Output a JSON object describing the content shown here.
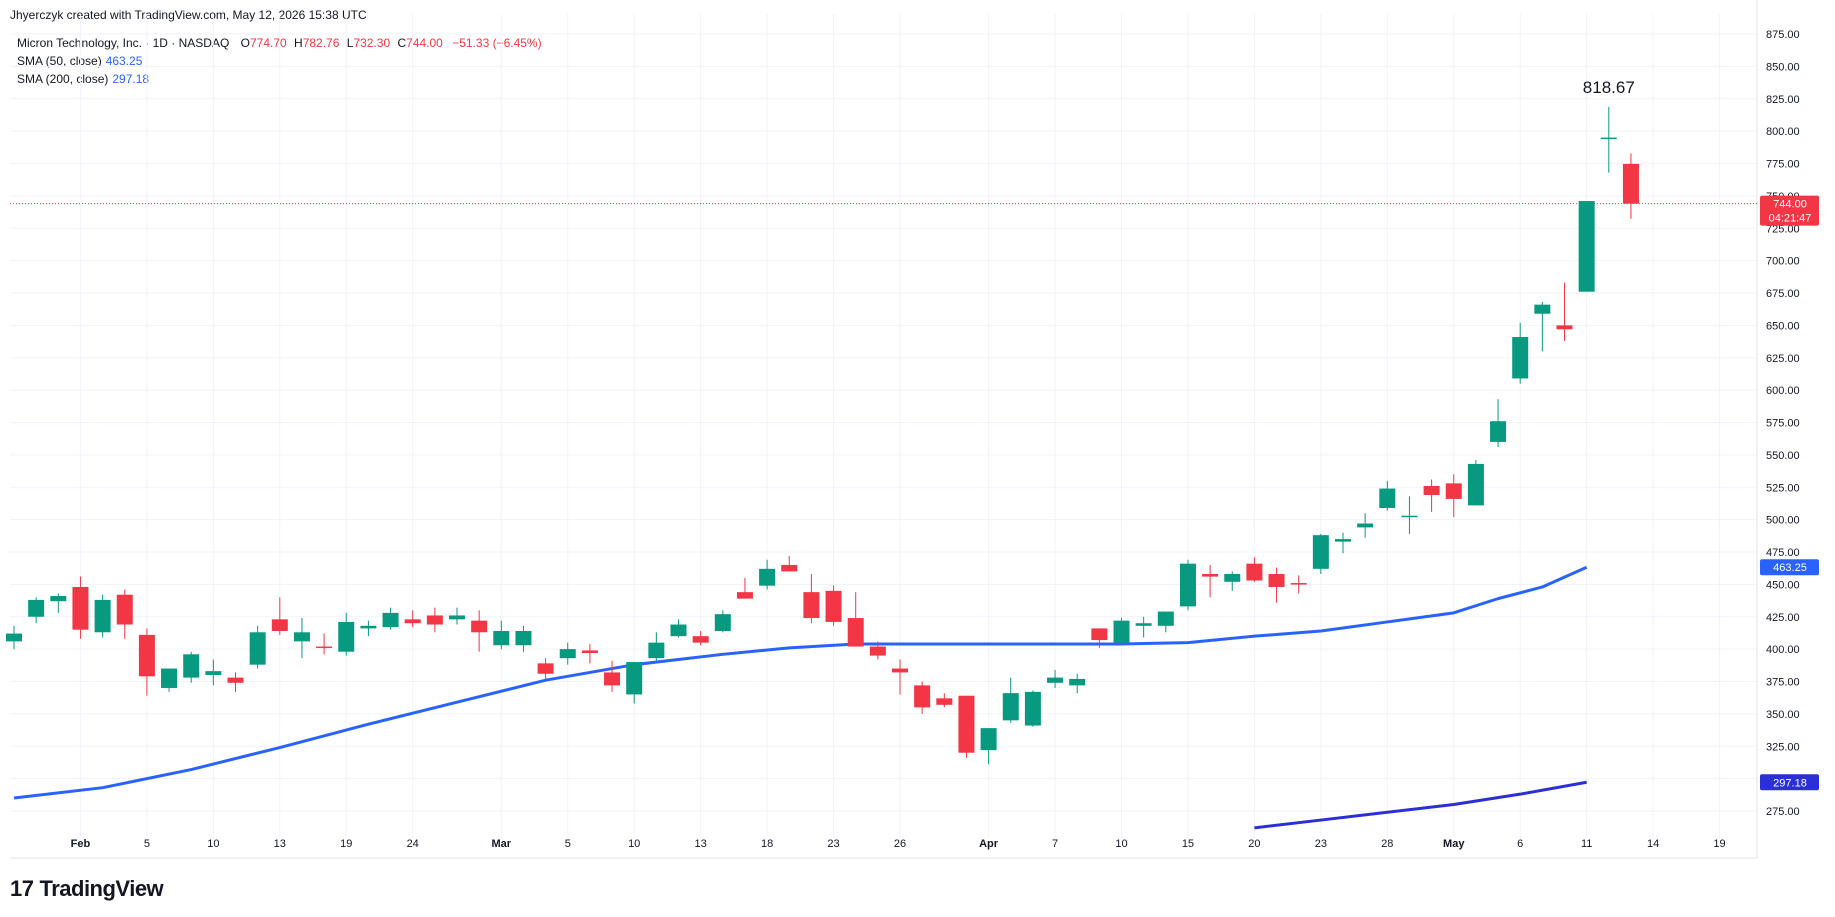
{
  "header": {
    "attribution": "Jhyerczyk created with TradingView.com, May 12, 2026 15:38 UTC"
  },
  "legend": {
    "symbol": "Micron Technology, Inc. · 1D · NASDAQ",
    "o_label": "O",
    "o_value": "774.70",
    "h_label": "H",
    "h_value": "782.76",
    "l_label": "L",
    "l_value": "732.30",
    "c_label": "C",
    "c_value": "744.00",
    "change": "−51.33 (−6.45%)",
    "sma50_label": "SMA (50, close)",
    "sma50_value": "463.25",
    "sma200_label": "SMA (200, close)",
    "sma200_value": "297.18"
  },
  "brand": {
    "logo": "17",
    "name": "TradingView"
  },
  "colors": {
    "up": "#089981",
    "down": "#f23645",
    "sma": "#2962ff",
    "sma200": "#2b2fd6",
    "grid": "#f0f3fa"
  },
  "chart_data": {
    "type": "candlestick",
    "y_range": [
      260,
      880
    ],
    "y_ticks": [
      275,
      300,
      325,
      350,
      375,
      400,
      425,
      450,
      475,
      500,
      525,
      550,
      575,
      600,
      625,
      650,
      675,
      700,
      725,
      750,
      775,
      800,
      825,
      850,
      875
    ],
    "y_tick_labels": [
      "275.00",
      "300.00",
      "325.00",
      "350.00",
      "375.00",
      "400.00",
      "425.00",
      "450.00",
      "475.00",
      "500.00",
      "525.00",
      "550.00",
      "575.00",
      "600.00",
      "625.00",
      "650.00",
      "675.00",
      "700.00",
      "725.00",
      "750.00",
      "775.00",
      "800.00",
      "825.00",
      "850.00",
      "875.00"
    ],
    "x_labels": [
      {
        "label": "Feb",
        "day": 3,
        "bold": true
      },
      {
        "label": "5",
        "day": 6
      },
      {
        "label": "10",
        "day": 9
      },
      {
        "label": "13",
        "day": 12
      },
      {
        "label": "19",
        "day": 15
      },
      {
        "label": "24",
        "day": 18
      },
      {
        "label": "Mar",
        "day": 22,
        "bold": true
      },
      {
        "label": "5",
        "day": 25
      },
      {
        "label": "10",
        "day": 28
      },
      {
        "label": "13",
        "day": 31
      },
      {
        "label": "18",
        "day": 34
      },
      {
        "label": "23",
        "day": 37
      },
      {
        "label": "26",
        "day": 40
      },
      {
        "label": "Apr",
        "day": 44,
        "bold": true
      },
      {
        "label": "7",
        "day": 47
      },
      {
        "label": "10",
        "day": 50
      },
      {
        "label": "15",
        "day": 53
      },
      {
        "label": "20",
        "day": 56
      },
      {
        "label": "23",
        "day": 59
      },
      {
        "label": "28",
        "day": 62
      },
      {
        "label": "May",
        "day": 65,
        "bold": true
      },
      {
        "label": "6",
        "day": 68
      },
      {
        "label": "11",
        "day": 71
      },
      {
        "label": "14",
        "day": 74
      },
      {
        "label": "19",
        "day": 77
      }
    ],
    "candles": [
      {
        "o": 406,
        "h": 418,
        "l": 400,
        "c": 412
      },
      {
        "o": 425,
        "h": 440,
        "l": 420,
        "c": 438
      },
      {
        "o": 437,
        "h": 443,
        "l": 428,
        "c": 441
      },
      {
        "o": 448,
        "h": 456,
        "l": 408,
        "c": 415
      },
      {
        "o": 413,
        "h": 442,
        "l": 409,
        "c": 438
      },
      {
        "o": 442,
        "h": 446,
        "l": 408,
        "c": 419
      },
      {
        "o": 411,
        "h": 416,
        "l": 364,
        "c": 379
      },
      {
        "o": 370,
        "h": 384,
        "l": 367,
        "c": 385
      },
      {
        "o": 378,
        "h": 398,
        "l": 374,
        "c": 396
      },
      {
        "o": 380,
        "h": 392,
        "l": 372,
        "c": 383
      },
      {
        "o": 378,
        "h": 382,
        "l": 367,
        "c": 374
      },
      {
        "o": 388,
        "h": 418,
        "l": 385,
        "c": 413
      },
      {
        "o": 423,
        "h": 440,
        "l": 411,
        "c": 414
      },
      {
        "o": 406,
        "h": 424,
        "l": 393,
        "c": 413
      },
      {
        "o": 402,
        "h": 412,
        "l": 396,
        "c": 401
      },
      {
        "o": 398,
        "h": 428,
        "l": 395,
        "c": 421
      },
      {
        "o": 416,
        "h": 422,
        "l": 410,
        "c": 418
      },
      {
        "o": 417,
        "h": 432,
        "l": 415,
        "c": 428
      },
      {
        "o": 423,
        "h": 430,
        "l": 417,
        "c": 420
      },
      {
        "o": 426,
        "h": 432,
        "l": 413,
        "c": 419
      },
      {
        "o": 423,
        "h": 432,
        "l": 419,
        "c": 426
      },
      {
        "o": 422,
        "h": 430,
        "l": 398,
        "c": 413
      },
      {
        "o": 403,
        "h": 422,
        "l": 400,
        "c": 414
      },
      {
        "o": 403,
        "h": 418,
        "l": 398,
        "c": 414
      },
      {
        "o": 389,
        "h": 393,
        "l": 376,
        "c": 381
      },
      {
        "o": 393,
        "h": 405,
        "l": 388,
        "c": 400
      },
      {
        "o": 399,
        "h": 404,
        "l": 389,
        "c": 397
      },
      {
        "o": 382,
        "h": 391,
        "l": 367,
        "c": 372
      },
      {
        "o": 365,
        "h": 390,
        "l": 358,
        "c": 390
      },
      {
        "o": 393,
        "h": 413,
        "l": 391,
        "c": 405
      },
      {
        "o": 410,
        "h": 423,
        "l": 409,
        "c": 419
      },
      {
        "o": 410,
        "h": 414,
        "l": 403,
        "c": 405
      },
      {
        "o": 414,
        "h": 430,
        "l": 413,
        "c": 427
      },
      {
        "o": 444,
        "h": 455,
        "l": 439,
        "c": 439
      },
      {
        "o": 449,
        "h": 469,
        "l": 446,
        "c": 462
      },
      {
        "o": 465,
        "h": 472,
        "l": 460,
        "c": 460
      },
      {
        "o": 444,
        "h": 458,
        "l": 420,
        "c": 424
      },
      {
        "o": 445,
        "h": 449,
        "l": 418,
        "c": 421
      },
      {
        "o": 424,
        "h": 444,
        "l": 402,
        "c": 402
      },
      {
        "o": 402,
        "h": 406,
        "l": 392,
        "c": 395
      },
      {
        "o": 385,
        "h": 392,
        "l": 365,
        "c": 382
      },
      {
        "o": 372,
        "h": 375,
        "l": 350,
        "c": 355
      },
      {
        "o": 362,
        "h": 366,
        "l": 355,
        "c": 357
      },
      {
        "o": 364,
        "h": 364,
        "l": 316,
        "c": 320
      },
      {
        "o": 322,
        "h": 337,
        "l": 311,
        "c": 339
      },
      {
        "o": 345,
        "h": 378,
        "l": 343,
        "c": 366
      },
      {
        "o": 341,
        "h": 368,
        "l": 340,
        "c": 367
      },
      {
        "o": 374,
        "h": 384,
        "l": 370,
        "c": 378
      },
      {
        "o": 372,
        "h": 381,
        "l": 366,
        "c": 377
      },
      {
        "o": 416,
        "h": 416,
        "l": 401,
        "c": 407
      },
      {
        "o": 405,
        "h": 424,
        "l": 403,
        "c": 422
      },
      {
        "o": 418,
        "h": 425,
        "l": 409,
        "c": 420
      },
      {
        "o": 418,
        "h": 428,
        "l": 413,
        "c": 429
      },
      {
        "o": 433,
        "h": 469,
        "l": 430,
        "c": 466
      },
      {
        "o": 458,
        "h": 465,
        "l": 440,
        "c": 456
      },
      {
        "o": 452,
        "h": 460,
        "l": 445,
        "c": 458
      },
      {
        "o": 466,
        "h": 471,
        "l": 452,
        "c": 453
      },
      {
        "o": 458,
        "h": 463,
        "l": 436,
        "c": 448
      },
      {
        "o": 451,
        "h": 457,
        "l": 443,
        "c": 450
      },
      {
        "o": 462,
        "h": 489,
        "l": 458,
        "c": 488
      },
      {
        "o": 483,
        "h": 490,
        "l": 474,
        "c": 485
      },
      {
        "o": 494,
        "h": 505,
        "l": 486,
        "c": 497
      },
      {
        "o": 509,
        "h": 530,
        "l": 507,
        "c": 524
      },
      {
        "o": 502,
        "h": 518,
        "l": 489,
        "c": 503
      },
      {
        "o": 526,
        "h": 531,
        "l": 506,
        "c": 519
      },
      {
        "o": 528,
        "h": 535,
        "l": 502,
        "c": 516
      },
      {
        "o": 511,
        "h": 546,
        "l": 511,
        "c": 543
      },
      {
        "o": 560,
        "h": 593,
        "l": 556,
        "c": 576
      },
      {
        "o": 609,
        "h": 652,
        "l": 605,
        "c": 641
      },
      {
        "o": 659,
        "h": 668,
        "l": 630,
        "c": 666
      },
      {
        "o": 650,
        "h": 683,
        "l": 638,
        "c": 647
      },
      {
        "o": 676,
        "h": 746,
        "l": 676,
        "c": 746
      },
      {
        "o": 794,
        "h": 818.67,
        "l": 768,
        "c": 795
      },
      {
        "o": 774.7,
        "h": 782.76,
        "l": 732.3,
        "c": 744.0
      }
    ],
    "sma50": [
      {
        "day": 0,
        "v": 285
      },
      {
        "day": 4,
        "v": 293
      },
      {
        "day": 8,
        "v": 307
      },
      {
        "day": 12,
        "v": 324
      },
      {
        "day": 16,
        "v": 342
      },
      {
        "day": 20,
        "v": 359
      },
      {
        "day": 24,
        "v": 376
      },
      {
        "day": 28,
        "v": 388
      },
      {
        "day": 32,
        "v": 396
      },
      {
        "day": 35,
        "v": 401
      },
      {
        "day": 38,
        "v": 404
      },
      {
        "day": 41,
        "v": 404
      },
      {
        "day": 44,
        "v": 404
      },
      {
        "day": 47,
        "v": 404
      },
      {
        "day": 50,
        "v": 404
      },
      {
        "day": 53,
        "v": 405
      },
      {
        "day": 56,
        "v": 410
      },
      {
        "day": 59,
        "v": 414
      },
      {
        "day": 62,
        "v": 421
      },
      {
        "day": 65,
        "v": 428
      },
      {
        "day": 67,
        "v": 439
      },
      {
        "day": 69,
        "v": 448
      },
      {
        "day": 71,
        "v": 463.25
      }
    ],
    "sma200": [
      {
        "day": 56,
        "v": 262
      },
      {
        "day": 59,
        "v": 268
      },
      {
        "day": 62,
        "v": 274
      },
      {
        "day": 65,
        "v": 280
      },
      {
        "day": 68,
        "v": 288
      },
      {
        "day": 71,
        "v": 297.18
      }
    ],
    "last_price": {
      "value": 744.0,
      "label": "744.00",
      "countdown": "04:21:47"
    },
    "high_annotation": {
      "value": 818.67,
      "label": "818.67",
      "candle": 72
    },
    "sma50_tag": {
      "value": 463.25,
      "label": "463.25"
    },
    "sma200_tag": {
      "value": 297.18,
      "label": "297.18"
    }
  }
}
